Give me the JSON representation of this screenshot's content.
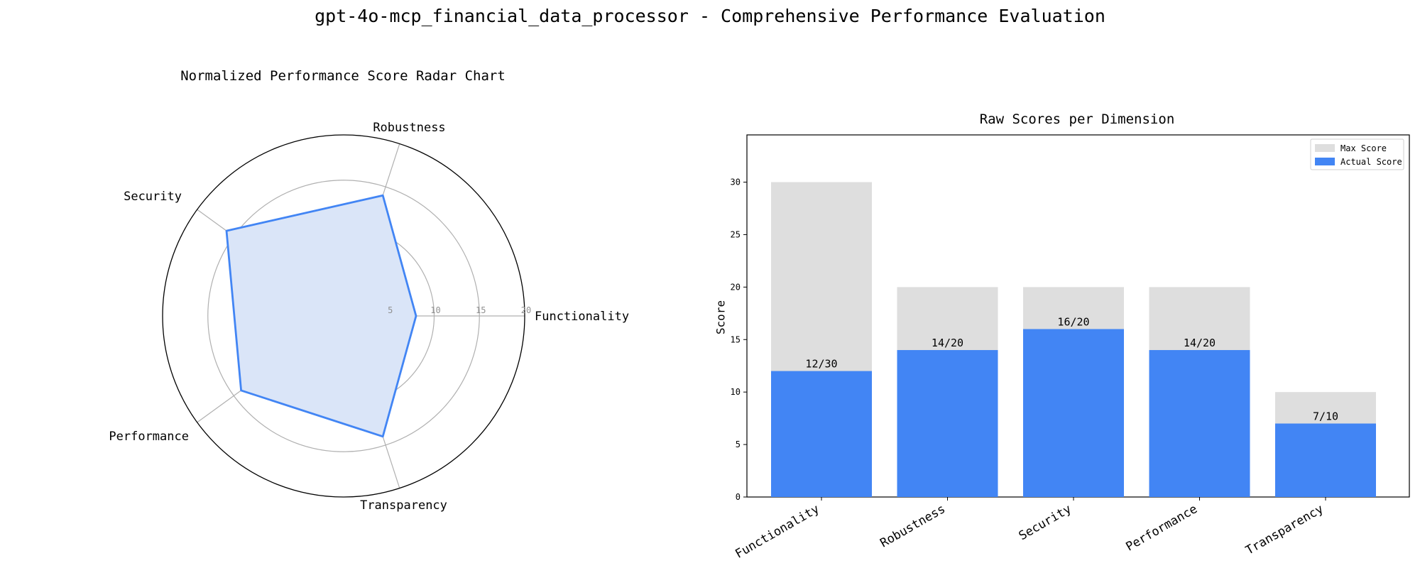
{
  "title": "gpt-4o-mcp_financial_data_processor - Comprehensive Performance Evaluation",
  "colors": {
    "accent": "#4285f4",
    "fill": "#dae5f8",
    "max_bar": "#dedede",
    "grid": "#b0b0b0",
    "tick_text": "#909090"
  },
  "chart_data": [
    {
      "type": "radar",
      "title": "Normalized Performance Score Radar Chart",
      "categories": [
        "Functionality",
        "Robustness",
        "Security",
        "Performance",
        "Transparency"
      ],
      "values": [
        8,
        14,
        16,
        14,
        14
      ],
      "rlim": [
        0,
        20
      ],
      "rticks": [
        5,
        10,
        15,
        20
      ],
      "rtick_labels": [
        "5",
        "10",
        "15",
        "20"
      ],
      "grid": true
    },
    {
      "type": "bar",
      "title": "Raw Scores per Dimension",
      "categories": [
        "Functionality",
        "Robustness",
        "Security",
        "Performance",
        "Transparency"
      ],
      "series": [
        {
          "name": "Max Score",
          "values": [
            30,
            20,
            20,
            20,
            10
          ]
        },
        {
          "name": "Actual Score",
          "values": [
            12,
            14,
            16,
            14,
            7
          ]
        }
      ],
      "data_labels": [
        "12/30",
        "14/20",
        "16/20",
        "14/20",
        "7/10"
      ],
      "xlabel": "",
      "ylabel": "Score",
      "ylim": [
        0,
        34.5
      ],
      "yticks": [
        0,
        5,
        10,
        15,
        20,
        25,
        30
      ],
      "legend": "top-right",
      "grid": false
    }
  ]
}
